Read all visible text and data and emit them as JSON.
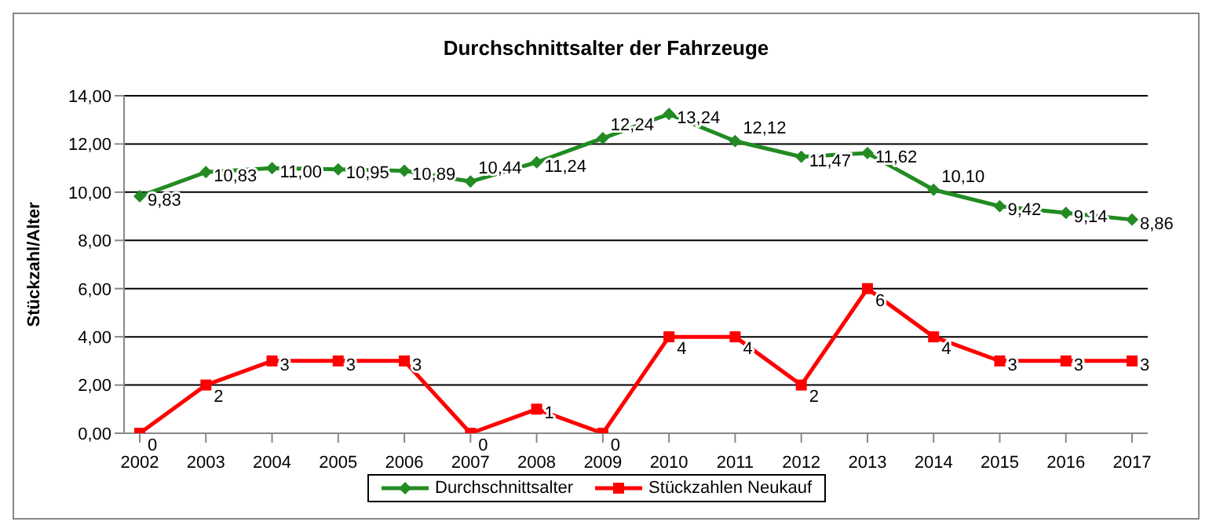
{
  "chart_data": {
    "type": "line",
    "title": "Durchschnittsalter der Fahrzeuge",
    "ylabel": "Stückzahl/Alter",
    "categories": [
      "2002",
      "2003",
      "2004",
      "2005",
      "2006",
      "2007",
      "2008",
      "2009",
      "2010",
      "2011",
      "2012",
      "2013",
      "2014",
      "2015",
      "2016",
      "2017"
    ],
    "series": [
      {
        "name": "Durchschnittsalter",
        "color": "#228b22",
        "marker": "diamond",
        "values": [
          9.83,
          10.83,
          11.0,
          10.95,
          10.89,
          10.44,
          11.24,
          12.24,
          13.24,
          12.12,
          11.47,
          11.62,
          10.1,
          9.42,
          9.14,
          8.86
        ],
        "value_labels": [
          "9,83",
          "10,83",
          "11,00",
          "10,95",
          "10,89",
          "10,44",
          "11,24",
          "12,24",
          "13,24",
          "12,12",
          "11,47",
          "11,62",
          "10,10",
          "9,42",
          "9,14",
          "8,86"
        ]
      },
      {
        "name": "Stückzahlen Neukauf",
        "color": "#ff0000",
        "marker": "square",
        "values": [
          0,
          2,
          3,
          3,
          3,
          0,
          1,
          0,
          4,
          4,
          2,
          6,
          4,
          3,
          3,
          3
        ],
        "value_labels": [
          "0",
          "2",
          "3",
          "3",
          "3",
          "0",
          "1",
          "0",
          "4",
          "4",
          "2",
          "6",
          "4",
          "3",
          "3",
          "3"
        ]
      }
    ],
    "ylim": [
      0,
      14
    ],
    "yticks": [
      {
        "value": 0,
        "label": "0,00"
      },
      {
        "value": 2,
        "label": "2,00"
      },
      {
        "value": 4,
        "label": "4,00"
      },
      {
        "value": 6,
        "label": "6,00"
      },
      {
        "value": 8,
        "label": "8,00"
      },
      {
        "value": 10,
        "label": "10,00"
      },
      {
        "value": 12,
        "label": "12,00"
      },
      {
        "value": 14,
        "label": "14,00"
      }
    ],
    "grid": "y",
    "legend": "bottom",
    "line_style": "solid"
  }
}
